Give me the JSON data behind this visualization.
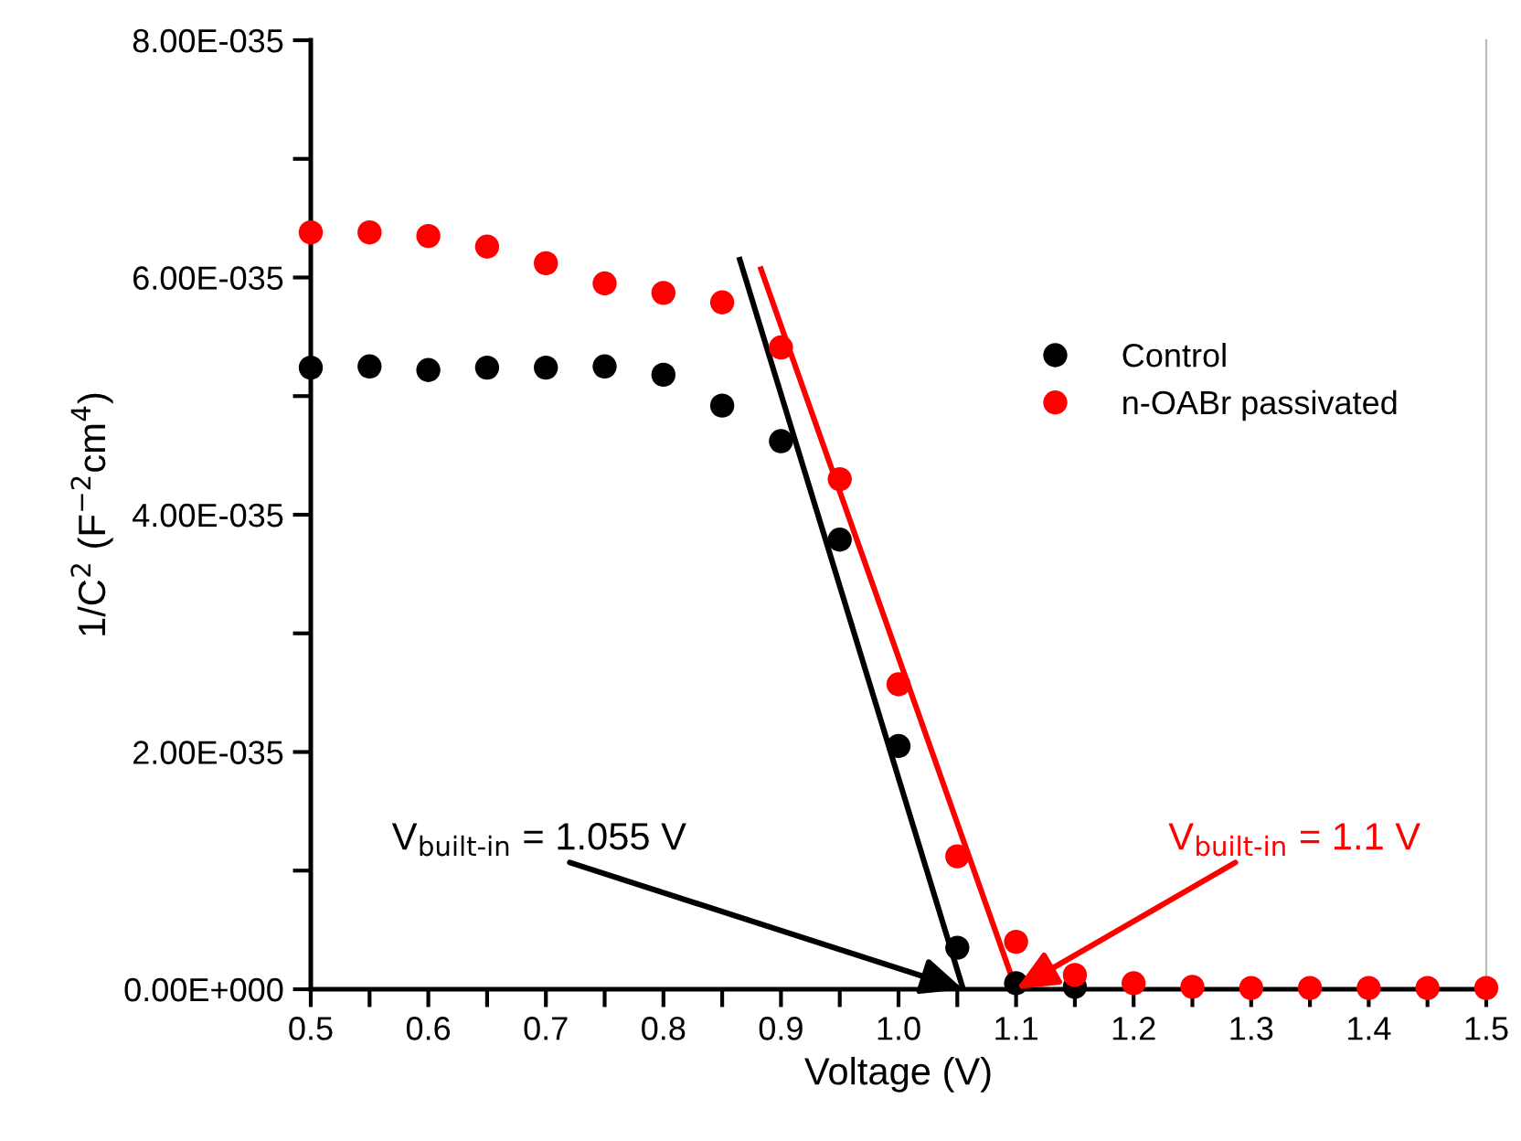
{
  "chart_data": {
    "type": "scatter",
    "xlabel": "Voltage (V)",
    "ylabel": "1/C$^{2}$ (F$^{−2}$cm$^{4}$)",
    "x": [
      0.5,
      0.55,
      0.6,
      0.65,
      0.7,
      0.75,
      0.8,
      0.85,
      0.9,
      0.95,
      1.0,
      1.05,
      1.1,
      1.15,
      1.2,
      1.25,
      1.3,
      1.35,
      1.4,
      1.45,
      1.5
    ],
    "series": [
      {
        "name": "Control",
        "color": "#000000",
        "values": [
          5.24e-35,
          5.25e-35,
          5.22e-35,
          5.24e-35,
          5.24e-35,
          5.25e-35,
          5.18e-35,
          4.92e-35,
          4.62e-35,
          3.79e-35,
          2.05e-35,
          3.5e-36,
          5e-37,
          2e-37,
          null,
          null,
          null,
          null,
          null,
          null,
          null
        ]
      },
      {
        "name": "n-OABr passivated",
        "color": "#ff0000",
        "values": [
          6.38e-35,
          6.38e-35,
          6.35e-35,
          6.26e-35,
          6.12e-35,
          5.95e-35,
          5.87e-35,
          5.79e-35,
          5.41e-35,
          4.3e-35,
          2.57e-35,
          1.12e-35,
          4e-36,
          1.2e-36,
          5e-37,
          2e-37,
          1e-37,
          1e-37,
          1e-37,
          1e-37,
          1e-37
        ]
      },
      {
        "type": "line",
        "marker": "none",
        "color": "#000000",
        "x": [
          0.865,
          1.055
        ],
        "values": [
          6.15e-35,
          0.0
        ]
      },
      {
        "type": "line",
        "marker": "none",
        "color": "#ff0000",
        "x": [
          0.883,
          1.1
        ],
        "values": [
          6.07e-35,
          0.0
        ]
      }
    ],
    "annotations": [
      {
        "text": "V$_{built-in}$ = 1.055 V",
        "x": 1.055,
        "y": 0.0
      },
      {
        "text": "V$_{built-in}$ = 1.1 V",
        "x": 1.1,
        "y": 0.0
      }
    ],
    "xlim": [
      0.5,
      1.5
    ],
    "xticks": [
      0.5,
      {
        "value": 0.55,
        "label": null
      },
      0.6,
      {
        "value": 0.65,
        "label": null
      },
      0.7,
      {
        "value": 0.75,
        "label": null
      },
      0.8,
      {
        "value": 0.85,
        "label": null
      },
      0.9,
      {
        "value": 0.95,
        "label": null
      },
      {
        "value": 1.0,
        "label": "1.0"
      },
      {
        "value": 1.05,
        "label": null
      },
      1.1,
      {
        "value": 1.15,
        "label": null
      },
      1.2,
      {
        "value": 1.25,
        "label": null
      },
      1.3,
      {
        "value": 1.35,
        "label": null
      },
      1.4,
      {
        "value": 1.45,
        "label": null
      },
      1.5
    ],
    "ylim": [
      0,
      8e-35
    ],
    "yticks": [
      {
        "value": 0,
        "label": "0.00E+000"
      },
      {
        "value": 1e-35,
        "label": null
      },
      {
        "value": 2e-35,
        "label": "2.00E-035"
      },
      {
        "value": 3e-35,
        "label": null
      },
      {
        "value": 4e-35,
        "label": "4.00E-035"
      },
      {
        "value": 5e-35,
        "label": null
      },
      {
        "value": 6e-35,
        "label": "6.00E-035"
      },
      {
        "value": 7e-35,
        "label": null
      },
      {
        "value": 8e-35,
        "label": "8.00E-035"
      }
    ],
    "marker": "circle",
    "grid": false,
    "legend": "right"
  }
}
